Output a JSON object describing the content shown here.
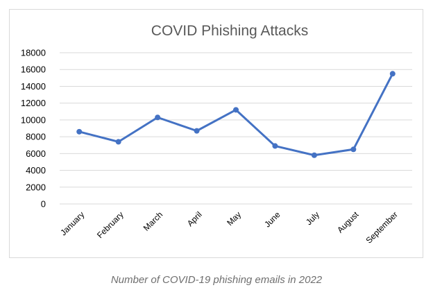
{
  "caption": "Number of COVID-19 phishing emails in 2022",
  "chart_data": {
    "type": "line",
    "title": "COVID Phishing Attacks",
    "xlabel": "",
    "ylabel": "",
    "categories": [
      "January",
      "February",
      "March",
      "April",
      "May",
      "June",
      "July",
      "August",
      "September"
    ],
    "series": [
      {
        "values": [
          8600,
          7400,
          10300,
          8700,
          11200,
          6900,
          5800,
          6500,
          15500
        ],
        "color": "#4472c4"
      }
    ],
    "yticks": [
      "18000",
      "16000",
      "14000",
      "12000",
      "10000",
      "8000",
      "6000",
      "4000",
      "2000",
      "0"
    ],
    "ylim": [
      0,
      18000
    ],
    "grid": true,
    "legend": "none"
  }
}
